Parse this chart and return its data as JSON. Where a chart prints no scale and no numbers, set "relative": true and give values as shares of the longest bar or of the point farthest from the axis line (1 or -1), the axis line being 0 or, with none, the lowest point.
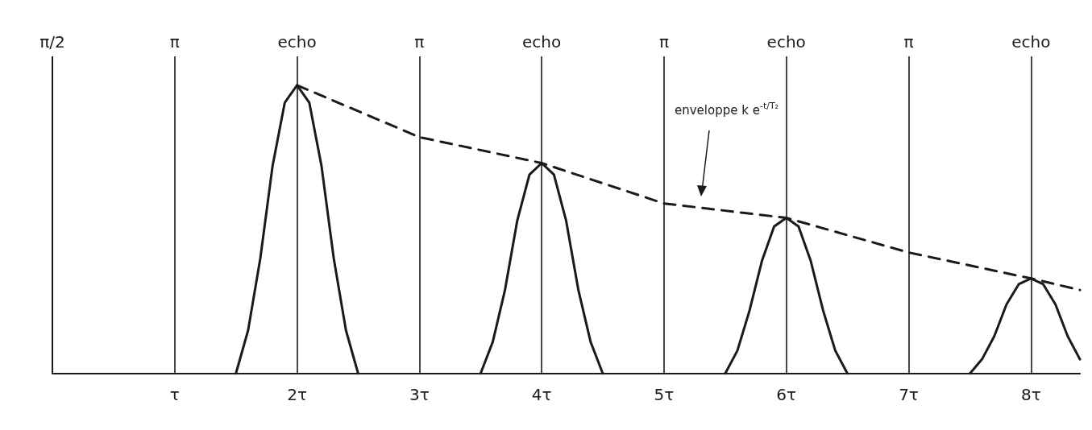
{
  "chart_data": {
    "type": "line",
    "relative": true,
    "xlim": [
      0,
      8.4
    ],
    "xticks": [
      {
        "value": 1,
        "label": "τ"
      },
      {
        "value": 2,
        "label": "2τ"
      },
      {
        "value": 3,
        "label": "3τ"
      },
      {
        "value": 4,
        "label": "4τ"
      },
      {
        "value": 5,
        "label": "5τ"
      },
      {
        "value": 6,
        "label": "6τ"
      },
      {
        "value": 7,
        "label": "7τ"
      },
      {
        "value": 8,
        "label": "8τ"
      }
    ],
    "series": [
      {
        "color": "#1a1a1a",
        "x": [
          1.5,
          1.6,
          1.7,
          1.8,
          1.9,
          2,
          2.1,
          2.2,
          2.3,
          2.4,
          2.5
        ],
        "values": [
          0,
          0.15,
          0.4,
          0.72,
          0.94,
          1,
          0.94,
          0.72,
          0.4,
          0.15,
          0
        ]
      },
      {
        "color": "#1a1a1a",
        "x": [
          3.5,
          3.6,
          3.7,
          3.8,
          3.9,
          4,
          4.1,
          4.2,
          4.3,
          4.4,
          4.5
        ],
        "values": [
          0,
          0.11,
          0.29,
          0.53,
          0.69,
          0.73,
          0.69,
          0.53,
          0.29,
          0.11,
          0
        ]
      },
      {
        "color": "#1a1a1a",
        "x": [
          5.5,
          5.6,
          5.7,
          5.8,
          5.9,
          6,
          6.1,
          6.2,
          6.3,
          6.4,
          6.5
        ],
        "values": [
          0,
          0.08,
          0.22,
          0.39,
          0.51,
          0.54,
          0.51,
          0.39,
          0.22,
          0.08,
          0
        ]
      },
      {
        "color": "#1a1a1a",
        "x": [
          7.5,
          7.6,
          7.7,
          7.8,
          7.9,
          8,
          8.1,
          8.2,
          8.3,
          8.4
        ],
        "values": [
          0,
          0.05,
          0.13,
          0.24,
          0.31,
          0.33,
          0.31,
          0.24,
          0.13,
          0.05
        ]
      },
      {
        "color": "#1a1a1a",
        "line_style": "dashed",
        "x": [
          2,
          3,
          4,
          5,
          6,
          7,
          8,
          8.4
        ],
        "values": [
          1,
          0.82,
          0.73,
          0.59,
          0.54,
          0.42,
          0.33,
          0.29
        ]
      }
    ],
    "ref_lines": [
      {
        "axis": "x",
        "value": 0,
        "label": "π/2",
        "color": "#1a1a1a"
      },
      {
        "axis": "x",
        "value": 1,
        "label": "π",
        "color": "#1a1a1a"
      },
      {
        "axis": "x",
        "value": 2,
        "label": "echo",
        "color": "#1a1a1a"
      },
      {
        "axis": "x",
        "value": 3,
        "label": "π",
        "color": "#1a1a1a"
      },
      {
        "axis": "x",
        "value": 4,
        "label": "echo",
        "color": "#1a1a1a"
      },
      {
        "axis": "x",
        "value": 5,
        "label": "π",
        "color": "#1a1a1a"
      },
      {
        "axis": "x",
        "value": 6,
        "label": "echo",
        "color": "#1a1a1a"
      },
      {
        "axis": "x",
        "value": 7,
        "label": "π",
        "color": "#1a1a1a"
      },
      {
        "axis": "x",
        "value": 8,
        "label": "echo",
        "color": "#1a1a1a"
      }
    ],
    "annotations": [
      "enveloppe k e$^{-t/T₂}$"
    ],
    "grid": false,
    "marker": "none"
  }
}
